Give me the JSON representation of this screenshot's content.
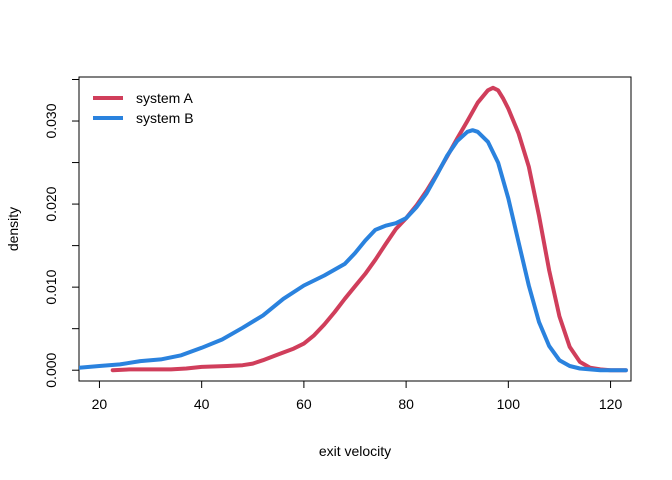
{
  "chart_data": {
    "type": "line",
    "title": "",
    "xlabel": "exit velocity",
    "ylabel": "density",
    "xlim": [
      16,
      124
    ],
    "ylim": [
      -0.0013,
      0.0353
    ],
    "x_ticks": [
      20,
      40,
      60,
      80,
      100,
      120
    ],
    "y_ticks": [
      0.0,
      0.01,
      0.02,
      0.03
    ],
    "x_tick_labels": [
      "20",
      "40",
      "60",
      "80",
      "100",
      "120"
    ],
    "y_tick_labels": [
      "0.000",
      "0.010",
      "0.020",
      "0.030"
    ],
    "grid": false,
    "legend_position": "top-left",
    "series": [
      {
        "name": "system A",
        "color": "#d03e5b",
        "x": [
          22.6,
          26,
          30,
          34,
          37,
          40,
          45,
          48,
          50,
          52,
          55,
          58,
          60,
          62,
          64,
          66,
          68,
          70,
          72,
          74,
          76,
          78,
          80,
          82,
          84,
          86,
          88,
          90,
          92,
          94,
          96,
          97,
          98,
          99,
          100,
          102,
          104,
          106,
          108,
          110,
          112,
          114,
          116,
          118,
          120,
          123
        ],
        "y": [
          0.0,
          0.0001,
          0.0001,
          0.0001,
          0.0002,
          0.0004,
          0.0005,
          0.0006,
          0.0008,
          0.0012,
          0.0019,
          0.0026,
          0.0032,
          0.0042,
          0.0055,
          0.007,
          0.0086,
          0.0101,
          0.0116,
          0.0133,
          0.0152,
          0.017,
          0.0183,
          0.0198,
          0.0216,
          0.0236,
          0.0257,
          0.0279,
          0.03,
          0.0322,
          0.0337,
          0.034,
          0.0337,
          0.0327,
          0.0315,
          0.0285,
          0.0245,
          0.0186,
          0.012,
          0.0065,
          0.0028,
          0.001,
          0.0003,
          0.0001,
          0.0,
          0.0
        ]
      },
      {
        "name": "system B",
        "color": "#2a82de",
        "x": [
          16,
          20,
          24,
          28,
          32,
          36,
          40,
          44,
          48,
          52,
          56,
          60,
          64,
          68,
          70,
          72,
          74,
          76,
          78,
          80,
          82,
          84,
          86,
          88,
          90,
          92,
          93,
          94,
          96,
          98,
          100,
          102,
          104,
          106,
          108,
          110,
          112,
          114,
          116,
          118,
          120,
          123
        ],
        "y": [
          0.0003,
          0.0005,
          0.0007,
          0.0011,
          0.0013,
          0.0018,
          0.0027,
          0.0037,
          0.0051,
          0.0066,
          0.0086,
          0.0102,
          0.0114,
          0.0128,
          0.0141,
          0.0156,
          0.0169,
          0.0174,
          0.0177,
          0.0183,
          0.0196,
          0.0213,
          0.0235,
          0.0258,
          0.0276,
          0.0287,
          0.0289,
          0.0287,
          0.0275,
          0.025,
          0.0207,
          0.0154,
          0.0102,
          0.0058,
          0.0029,
          0.0012,
          0.0005,
          0.0002,
          0.0001,
          0.0,
          0.0,
          0.0
        ]
      }
    ]
  }
}
